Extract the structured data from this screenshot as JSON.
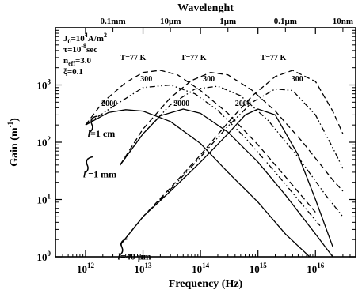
{
  "chart_data": {
    "type": "line",
    "xlabel": "Frequency (Hz)",
    "ylabel_main": "Gain (m",
    "ylabel_exp": "-1",
    "ylabel_close": ")",
    "top_label": "Wavelenght",
    "x_scale": "log",
    "y_scale": "log",
    "xlim": [
      300000000000.0,
      5e+16
    ],
    "ylim": [
      1,
      10000
    ],
    "grid": false,
    "legend": "none",
    "x_ticks": [
      {
        "value": 1000000000000.0,
        "base": "10",
        "exp": "12"
      },
      {
        "value": 10000000000000.0,
        "base": "10",
        "exp": "13"
      },
      {
        "value": 100000000000000.0,
        "base": "10",
        "exp": "14"
      },
      {
        "value": 1000000000000000.0,
        "base": "10",
        "exp": "15"
      },
      {
        "value": 1e+16,
        "base": "10",
        "exp": "16"
      }
    ],
    "y_ticks": [
      {
        "value": 1,
        "base": "10",
        "exp": "0"
      },
      {
        "value": 10,
        "base": "10",
        "exp": "1"
      },
      {
        "value": 100,
        "base": "10",
        "exp": "2"
      },
      {
        "value": 1000,
        "base": "10",
        "exp": "3"
      }
    ],
    "top_ticks": [
      {
        "label": "0.1mm",
        "frequency": 3000000000000.0
      },
      {
        "label": "10μm",
        "frequency": 30000000000000.0
      },
      {
        "label": "1μm",
        "frequency": 300000000000000.0
      },
      {
        "label": "0.1μm",
        "frequency": 3000000000000000.0
      },
      {
        "label": "10nm",
        "frequency": 3e+16
      }
    ],
    "params": [
      {
        "name": "J",
        "sub": "0",
        "value": "=10",
        "sup": "4",
        "unit": "A/m",
        "unit_sup": "2"
      },
      {
        "name": "τ",
        "sub": "",
        "value": "=10",
        "sup": "-8",
        "unit": "sec",
        "unit_sup": ""
      },
      {
        "name": "n",
        "sub": "eff",
        "value": "=3.0",
        "sup": "",
        "unit": "",
        "unit_sup": ""
      },
      {
        "name": "ξ",
        "sub": "",
        "value": "=0.1",
        "sup": "",
        "unit": "",
        "unit_sup": ""
      }
    ],
    "size_labels": [
      {
        "var": "l",
        "text": "=1 cm",
        "at_x": 1200000000000.0,
        "at_y": 195
      },
      {
        "var": "l",
        "text": " =1 mm",
        "at_x": 1000000000000.0,
        "at_y": 38
      },
      {
        "var": "l",
        "text": "=40 μm",
        "at_x": 4000000000000.0,
        "at_y": 1.4
      }
    ],
    "series": [
      {
        "group": "l=1 cm",
        "temperature": "T=77 K",
        "style": "dashed",
        "x": [
          1000000000000.0,
          2000000000000.0,
          5000000000000.0,
          10000000000000.0,
          20000000000000.0,
          40000000000000.0,
          100000000000000.0,
          300000000000000.0,
          1000000000000000.0,
          3000000000000000.0,
          1e+16
        ],
        "y": [
          200,
          500,
          1100,
          1650,
          1800,
          1500,
          800,
          320,
          90,
          25,
          6
        ]
      },
      {
        "group": "l=1 cm",
        "temperature": "300",
        "style": "dash-dot",
        "x": [
          1000000000000.0,
          3000000000000.0,
          10000000000000.0,
          30000000000000.0,
          80000000000000.0,
          200000000000000.0,
          600000000000000.0,
          2000000000000000.0,
          6000000000000000.0,
          1.2e+16
        ],
        "y": [
          200,
          420,
          900,
          1000,
          700,
          360,
          120,
          30,
          8,
          3.5
        ]
      },
      {
        "group": "l=1 cm",
        "temperature": "2000",
        "style": "solid",
        "x": [
          1000000000000.0,
          2500000000000.0,
          5000000000000.0,
          10000000000000.0,
          30000000000000.0,
          100000000000000.0,
          300000000000000.0,
          1000000000000000.0,
          3000000000000000.0,
          1e+16
        ],
        "y": [
          200,
          330,
          370,
          350,
          230,
          95,
          30,
          9,
          2.5,
          0.8
        ]
      },
      {
        "group": "l=1 mm",
        "temperature": "T=77 K",
        "style": "dashed",
        "x": [
          4000000000000.0,
          10000000000000.0,
          30000000000000.0,
          70000000000000.0,
          150000000000000.0,
          300000000000000.0,
          800000000000000.0,
          2000000000000000.0,
          6000000000000000.0,
          2e+16,
          3e+16
        ],
        "y": [
          40,
          170,
          600,
          1200,
          1650,
          1500,
          800,
          350,
          100,
          22,
          14
        ]
      },
      {
        "group": "l=1 mm",
        "temperature": "300",
        "style": "dash-dot",
        "x": [
          4000000000000.0,
          10000000000000.0,
          30000000000000.0,
          80000000000000.0,
          200000000000000.0,
          500000000000000.0,
          1500000000000000.0,
          5000000000000000.0,
          1.5e+16,
          3e+16
        ],
        "y": [
          40,
          140,
          450,
          850,
          950,
          650,
          240,
          55,
          12,
          5
        ]
      },
      {
        "group": "l=1 mm",
        "temperature": "2000",
        "style": "solid",
        "x": [
          4000000000000.0,
          10000000000000.0,
          20000000000000.0,
          50000000000000.0,
          100000000000000.0,
          300000000000000.0,
          1000000000000000.0,
          3000000000000000.0,
          1e+16,
          2e+16
        ],
        "y": [
          40,
          140,
          290,
          380,
          320,
          150,
          45,
          12,
          2.5,
          1
        ]
      },
      {
        "group": "l=40 μm",
        "temperature": "T=77 K",
        "style": "dashed",
        "x": [
          4000000000000.0,
          10000000000000.0,
          30000000000000.0,
          100000000000000.0,
          300000000000000.0,
          800000000000000.0,
          2000000000000000.0,
          4000000000000000.0,
          1e+16,
          2e+16,
          3e+16
        ],
        "y": [
          1.6,
          5,
          16,
          60,
          220,
          650,
          1400,
          1800,
          1150,
          350,
          140
        ]
      },
      {
        "group": "l=40 μm",
        "temperature": "300",
        "style": "dash-dot",
        "x": [
          4000000000000.0,
          10000000000000.0,
          30000000000000.0,
          100000000000000.0,
          300000000000000.0,
          800000000000000.0,
          2000000000000000.0,
          4000000000000000.0,
          1e+16,
          2e+16,
          3e+16
        ],
        "y": [
          1.6,
          5,
          15,
          55,
          190,
          500,
          850,
          800,
          300,
          80,
          35
        ]
      },
      {
        "group": "l=40 μm",
        "temperature": "2000",
        "style": "solid",
        "x": [
          4000000000000.0,
          10000000000000.0,
          30000000000000.0,
          100000000000000.0,
          300000000000000.0,
          600000000000000.0,
          1000000000000000.0,
          2000000000000000.0,
          5000000000000000.0,
          1e+16,
          2e+16
        ],
        "y": [
          1.6,
          5,
          14,
          45,
          140,
          300,
          380,
          300,
          60,
          10,
          1.5
        ]
      }
    ],
    "curve_labels": [
      {
        "text": "T=77 K",
        "x": 4000000000000.0,
        "y": 2700
      },
      {
        "text": "T=77 K",
        "x": 45000000000000.0,
        "y": 2700
      },
      {
        "text": "T=77 K",
        "x": 1100000000000000.0,
        "y": 2700
      },
      {
        "text": "300",
        "x": 9000000000000.0,
        "y": 1150
      },
      {
        "text": "300",
        "x": 110000000000000.0,
        "y": 1150
      },
      {
        "text": "300",
        "x": 3800000000000000.0,
        "y": 1150
      },
      {
        "text": "2000",
        "x": 1900000000000.0,
        "y": 430
      },
      {
        "text": "2000",
        "x": 34000000000000.0,
        "y": 430
      },
      {
        "text": "2000",
        "x": 400000000000000.0,
        "y": 430
      }
    ]
  }
}
